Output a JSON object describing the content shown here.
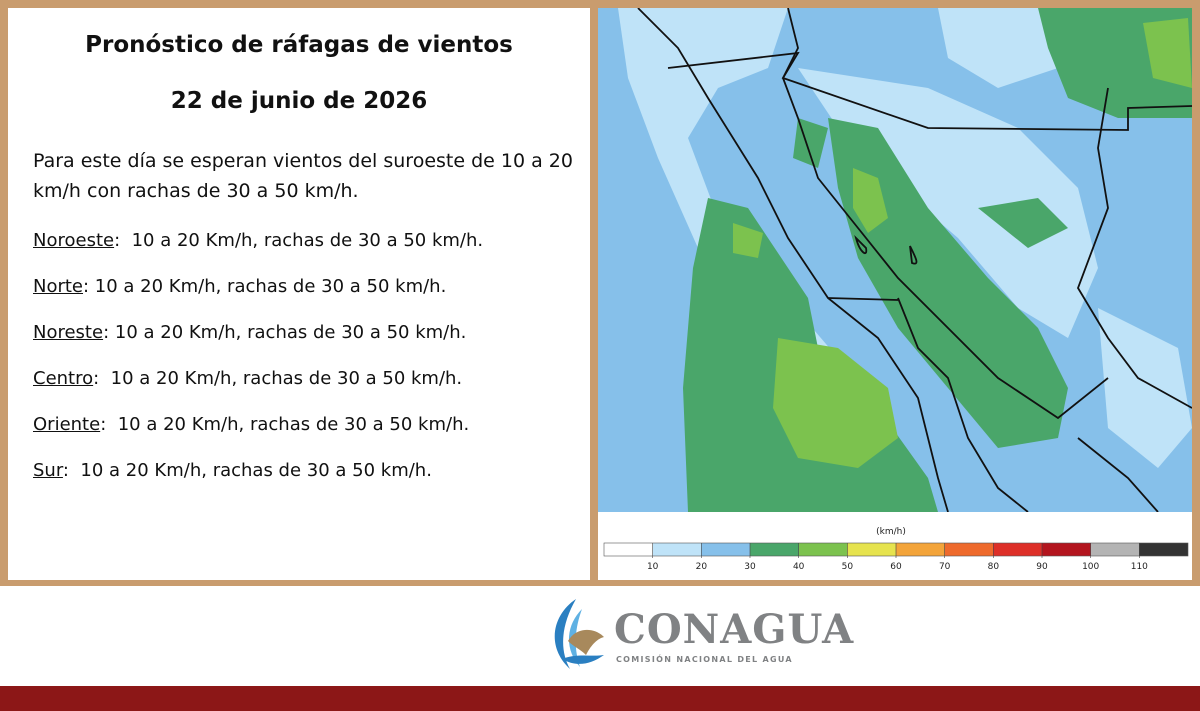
{
  "header": {
    "title": "Pronóstico de ráfagas de vientos",
    "date": "22 de junio de 2026"
  },
  "intro": "Para este día se esperan vientos del suroeste de 10 a 20 km/h con rachas de 30 a 50 km/h.",
  "regions": [
    {
      "name": "Noroeste",
      "text": ":  10 a 20 Km/h, rachas de 30 a 50 km/h."
    },
    {
      "name": "Norte",
      "text": ": 10 a 20 Km/h, rachas de 30 a 50 km/h."
    },
    {
      "name": "Noreste",
      "text": ": 10 a 20 Km/h, rachas de 30 a 50 km/h."
    },
    {
      "name": "Centro",
      "text": ":  10 a 20 Km/h, rachas de 30 a 50 km/h."
    },
    {
      "name": "Oriente",
      "text": ":  10 a 20 Km/h, rachas de 30 a 50 km/h."
    },
    {
      "name": "Sur",
      "text": ":  10 a 20 Km/h, rachas de 30 a 50 km/h."
    }
  ],
  "map": {
    "legend": {
      "unit": "(km/h)",
      "ticks": [
        10,
        20,
        30,
        40,
        50,
        60,
        70,
        80,
        90,
        100,
        110
      ],
      "colors": [
        "#ffffff",
        "#bfe3f8",
        "#86c0ea",
        "#4aa66a",
        "#7cc24e",
        "#e6e34e",
        "#f3a43a",
        "#ee6a2c",
        "#dd2f28",
        "#b3151e",
        "#b4b4b4",
        "#333333"
      ]
    }
  },
  "footer": {
    "logo": "CONAGUA",
    "subtitle": "COMISIÓN NACIONAL DEL AGUA"
  }
}
